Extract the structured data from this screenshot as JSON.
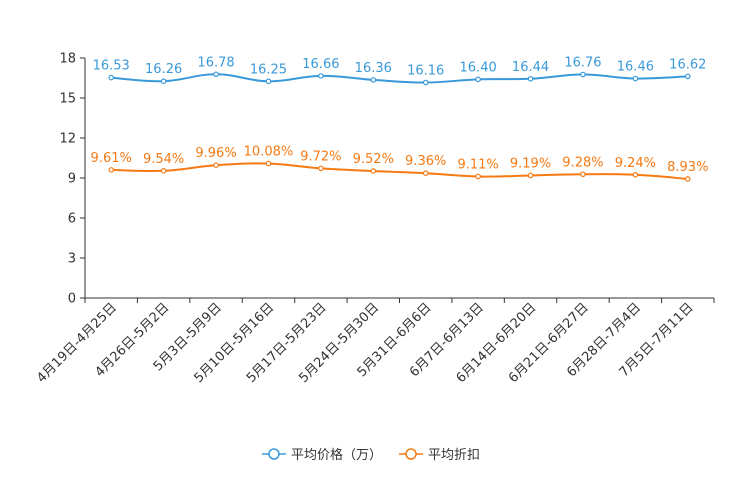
{
  "chart_data": {
    "type": "line",
    "title": "",
    "categories": [
      "4月19日-4月25日",
      "4月26日-5月2日",
      "5月3日-5月9日",
      "5月10日-5月16日",
      "5月17日-5月23日",
      "5月24日-5月30日",
      "5月31日-6月6日",
      "6月7日-6月13日",
      "6月14日-6月20日",
      "6月21日-6月27日",
      "6月28日-7月4日",
      "7月5日-7月11日"
    ],
    "ylim": [
      0,
      18
    ],
    "yticks": [
      0,
      3,
      6,
      9,
      12,
      15,
      18
    ],
    "grid": false,
    "legend_position": "bottom-center",
    "series": [
      {
        "name": "平均价格（万）",
        "color": "#3a9ad9",
        "values": [
          16.53,
          16.26,
          16.78,
          16.25,
          16.66,
          16.36,
          16.16,
          16.4,
          16.44,
          16.76,
          16.46,
          16.62
        ],
        "labels": [
          "16.53",
          "16.26",
          "16.78",
          "16.25",
          "16.66",
          "16.36",
          "16.16",
          "16.40",
          "16.44",
          "16.76",
          "16.46",
          "16.62"
        ]
      },
      {
        "name": "平均折扣",
        "color": "#f57a14",
        "values": [
          9.61,
          9.54,
          9.96,
          10.08,
          9.72,
          9.52,
          9.36,
          9.11,
          9.19,
          9.28,
          9.24,
          8.93
        ],
        "labels": [
          "9.61%",
          "9.54%",
          "9.96%",
          "10.08%",
          "9.72%",
          "9.52%",
          "9.36%",
          "9.11%",
          "9.19%",
          "9.28%",
          "9.24%",
          "8.93%"
        ]
      }
    ]
  }
}
